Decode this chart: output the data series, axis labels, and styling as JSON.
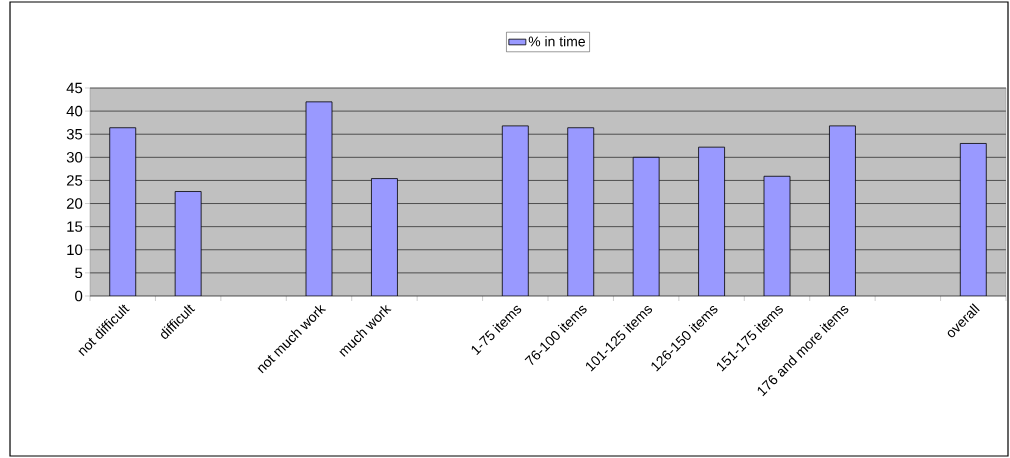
{
  "chart_data": {
    "type": "bar",
    "categories": [
      "not difficult",
      "difficult",
      null,
      "not much work",
      "much work",
      null,
      "1-75 items",
      "76-100 items",
      "101-125 items",
      "126-150 items",
      "151-175 items",
      "176 and more items",
      null,
      "overall"
    ],
    "series": [
      {
        "name": "% in time",
        "color": "#9999ff",
        "values": [
          36.4,
          22.6,
          null,
          42.0,
          25.4,
          null,
          36.8,
          36.4,
          30.0,
          32.2,
          25.9,
          36.8,
          null,
          33.0
        ]
      }
    ],
    "ylim": [
      0,
      45
    ],
    "yticks": [
      0,
      5,
      10,
      15,
      20,
      25,
      30,
      35,
      40,
      45
    ],
    "grid": "y",
    "legend": "top"
  }
}
